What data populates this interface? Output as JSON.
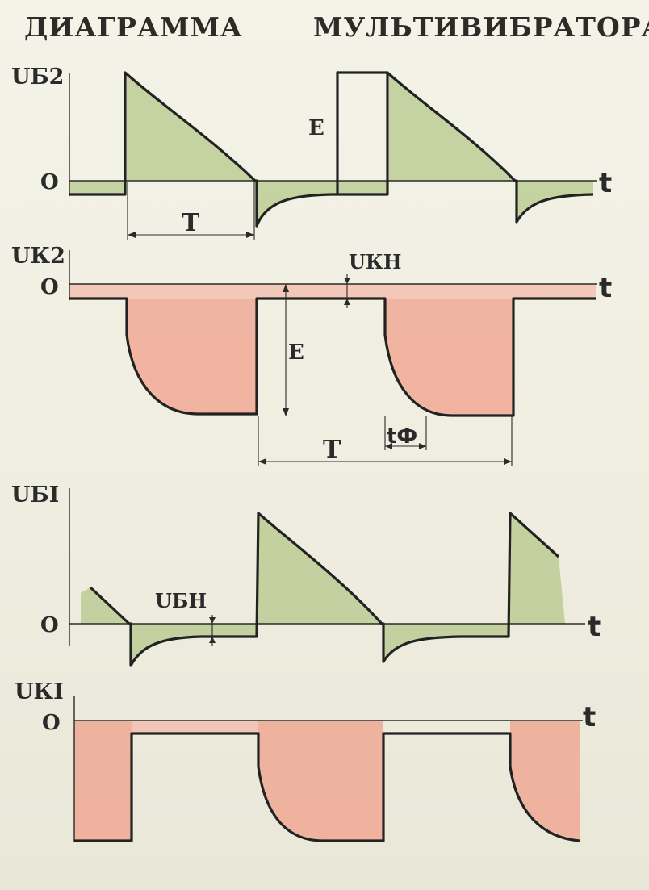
{
  "title": {
    "left": "ДИАГРАММА",
    "right": "МУЛЬТИВИБРАТОРА"
  },
  "panels": {
    "ub2": {
      "ylabel": "UБ2",
      "zero": "O",
      "t": "t",
      "e_label": "E",
      "period_label": "T"
    },
    "uk2": {
      "ylabel": "UК2",
      "zero": "O",
      "t": "t",
      "ukn_label": "UКН",
      "e_label": "E",
      "tf_label": "tФ",
      "period_label": "T"
    },
    "ub1": {
      "ylabel": "UБI",
      "zero": "O",
      "t": "t",
      "ubn_label": "UБН"
    },
    "uk1": {
      "ylabel": "UКI",
      "zero": "O",
      "t": "t"
    }
  },
  "colors": {
    "base_fill": "#b5c78a",
    "collector_fill": "#ef9b86",
    "line": "#222222",
    "background": "#f1f0e4"
  }
}
